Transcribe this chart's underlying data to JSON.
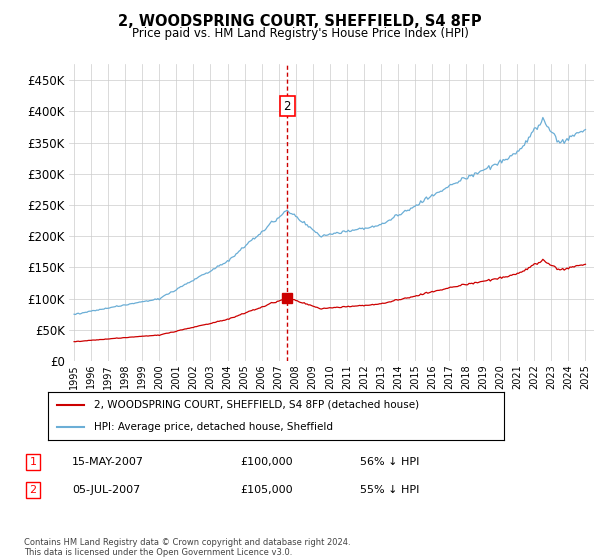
{
  "title": "2, WOODSPRING COURT, SHEFFIELD, S4 8FP",
  "subtitle": "Price paid vs. HM Land Registry's House Price Index (HPI)",
  "legend_property": "2, WOODSPRING COURT, SHEFFIELD, S4 8FP (detached house)",
  "legend_hpi": "HPI: Average price, detached house, Sheffield",
  "transaction1_label": "1",
  "transaction1_date": "15-MAY-2007",
  "transaction1_price": "£100,000",
  "transaction1_pct": "56% ↓ HPI",
  "transaction2_label": "2",
  "transaction2_date": "05-JUL-2007",
  "transaction2_price": "£105,000",
  "transaction2_pct": "55% ↓ HPI",
  "footer": "Contains HM Land Registry data © Crown copyright and database right 2024.\nThis data is licensed under the Open Government Licence v3.0.",
  "hpi_color": "#6baed6",
  "property_color": "#cc0000",
  "vline_color": "#cc0000",
  "grid_color": "#cccccc",
  "ylim": [
    0,
    475000
  ],
  "yticks": [
    0,
    50000,
    100000,
    150000,
    200000,
    250000,
    300000,
    350000,
    400000,
    450000
  ],
  "ytick_labels": [
    "£0",
    "£50K",
    "£100K",
    "£150K",
    "£200K",
    "£250K",
    "£300K",
    "£350K",
    "£400K",
    "£450K"
  ],
  "transaction1_x": 2007.37,
  "transaction2_x": 2007.51,
  "xlim_left": 1994.7,
  "xlim_right": 2025.5
}
